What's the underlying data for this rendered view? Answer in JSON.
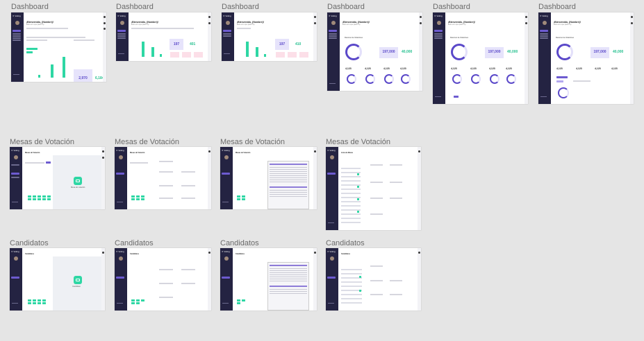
{
  "sections": {
    "dashboard": "Dashboard",
    "mesas": "Mesas de Votación",
    "candidatos": "Candidatos"
  },
  "app": {
    "logo": "✕ Voting",
    "greeting": "¡Bienvenido, {Nombre}!",
    "subgreeting": "Esto es lo que pasó hoy"
  },
  "stats": {
    "s1a": "2,970",
    "s1b": "6,184",
    "s2a": "197",
    "s2b": "401",
    "s3a": "197",
    "s3b": "410",
    "s4a": "197,000",
    "s4b": "40,000",
    "s5a": "197,000",
    "s5b": "40,000",
    "s6a": "197,000",
    "s6b": "40,000",
    "small": "4,123"
  },
  "labels": {
    "resumen": "Resumen de Votaciones",
    "mesas_title": "Mesas de Votación",
    "candidatos_title": "Candidatos",
    "lista": "Lista de Mesas",
    "icon_caption_mesa": "Mesa de votación",
    "icon_caption_cand": "Candidato"
  }
}
